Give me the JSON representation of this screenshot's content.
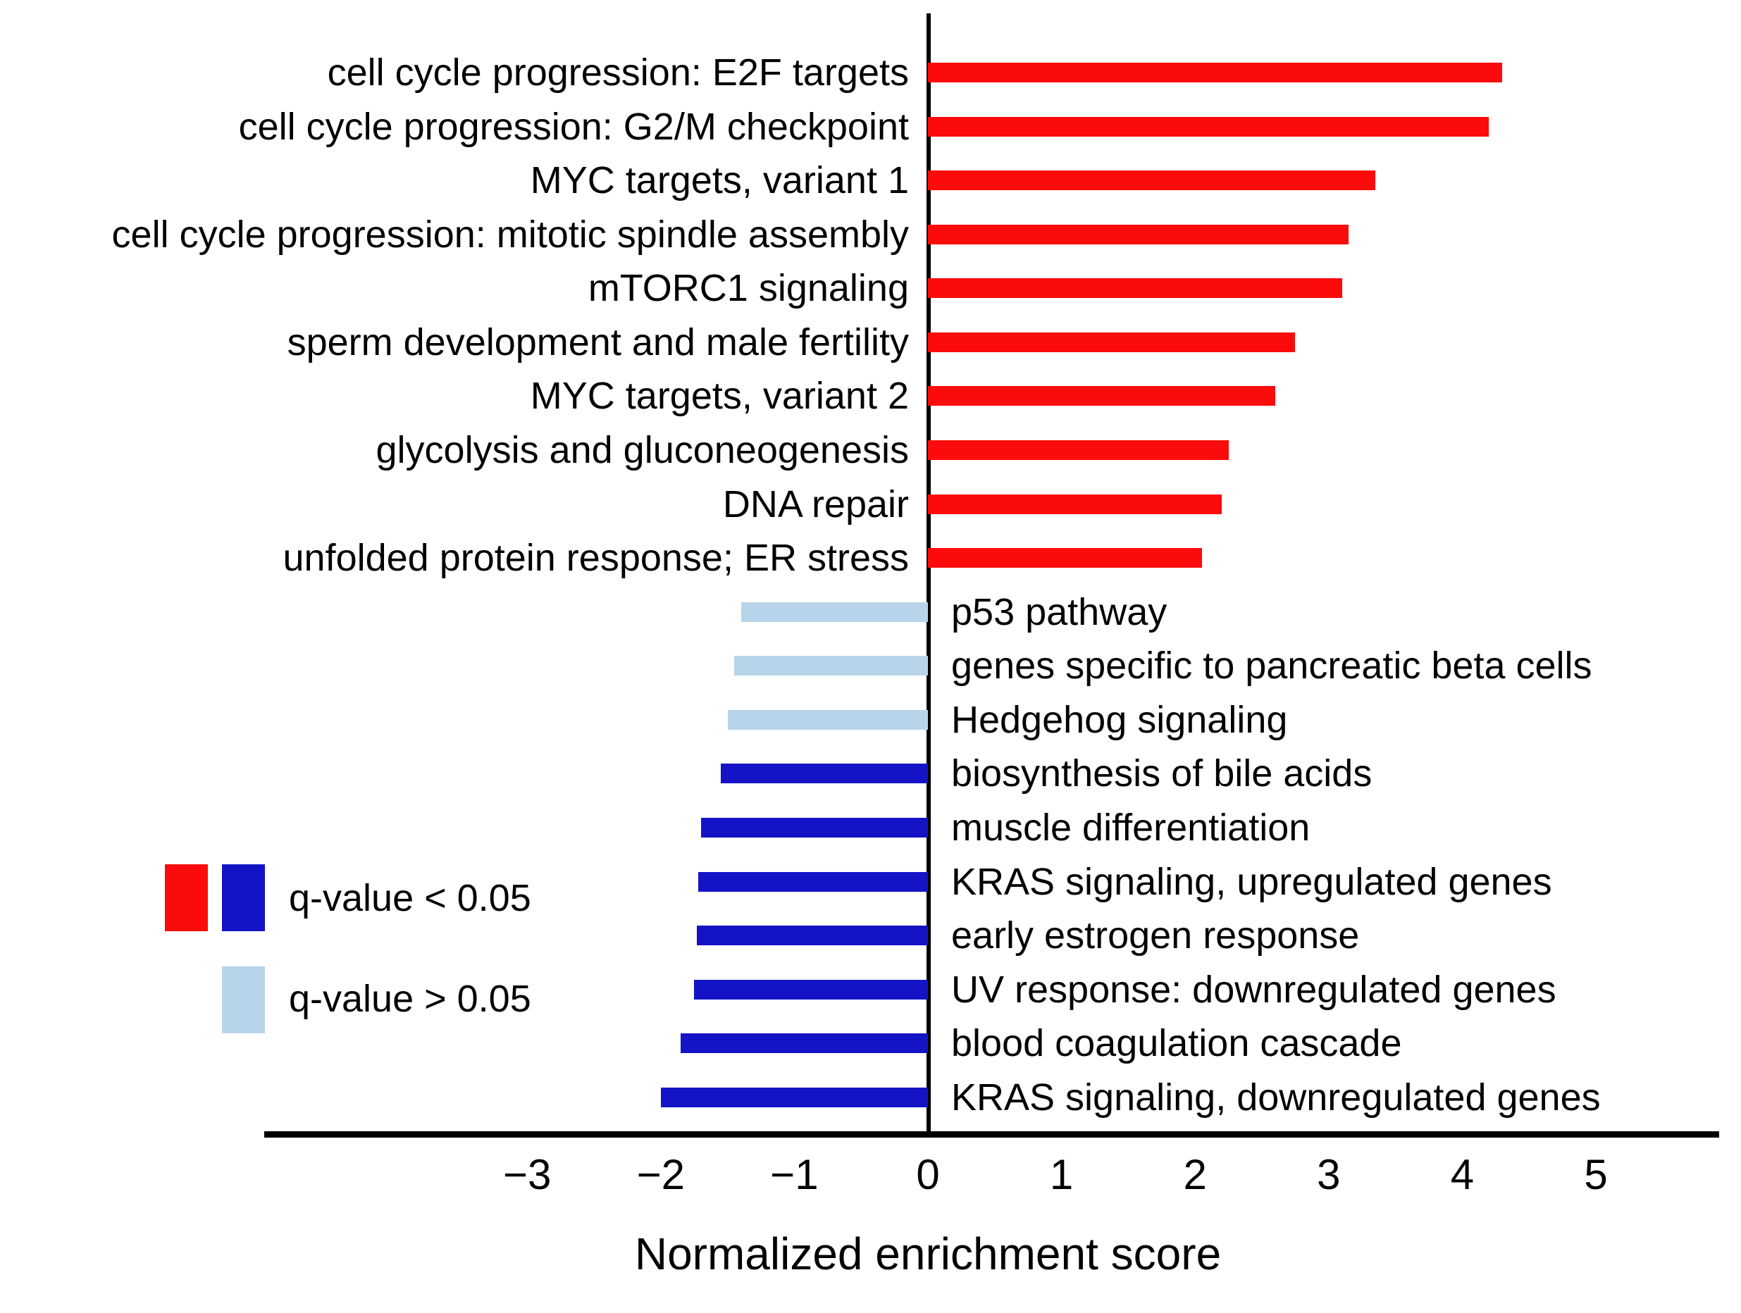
{
  "chart_data": {
    "type": "bar",
    "orientation": "horizontal",
    "xlabel": "Normalized enrichment score",
    "xticks": [
      -3,
      -2,
      -1,
      0,
      1,
      2,
      3,
      4,
      5
    ],
    "xlim": [
      -5.0,
      5.9
    ],
    "grid": false,
    "categories": [
      "cell cycle progression: E2F targets",
      "cell cycle progression: G2/M checkpoint",
      "MYC targets, variant 1",
      "cell cycle progression: mitotic spindle assembly",
      "mTORC1 signaling",
      "sperm development and male fertility",
      "MYC targets, variant 2",
      "glycolysis and gluconeogenesis",
      "DNA repair",
      "unfolded protein response; ER stress",
      "p53 pathway",
      "genes specific to pancreatic beta cells",
      "Hedgehog signaling",
      "biosynthesis of bile acids",
      "muscle differentiation",
      "KRAS signaling, upregulated genes",
      "early estrogen response",
      "UV response: downregulated genes",
      "blood coagulation cascade",
      "KRAS signaling, downregulated genes"
    ],
    "values": [
      4.3,
      4.2,
      3.35,
      3.15,
      3.1,
      2.75,
      2.6,
      2.25,
      2.2,
      2.05,
      -1.4,
      -1.45,
      -1.5,
      -1.55,
      -1.7,
      -1.72,
      -1.73,
      -1.75,
      -1.85,
      -2.0
    ],
    "groups": [
      "up_sig",
      "up_sig",
      "up_sig",
      "up_sig",
      "up_sig",
      "up_sig",
      "up_sig",
      "up_sig",
      "up_sig",
      "up_sig",
      "ns",
      "ns",
      "ns",
      "down_sig",
      "down_sig",
      "down_sig",
      "down_sig",
      "down_sig",
      "down_sig",
      "down_sig"
    ],
    "colors": {
      "up_sig": "#FB0B0B",
      "down_sig": "#1414C6",
      "ns": "#B8D4EA",
      "axis": "#000000"
    },
    "legend": [
      {
        "label": "q-value < 0.05",
        "swatch_colors": [
          "#FB0B0B",
          "#1414C6"
        ]
      },
      {
        "label": "q-value > 0.05",
        "swatch_colors": [
          "#B8D4EA"
        ]
      }
    ],
    "legend_position": "left-middle"
  }
}
